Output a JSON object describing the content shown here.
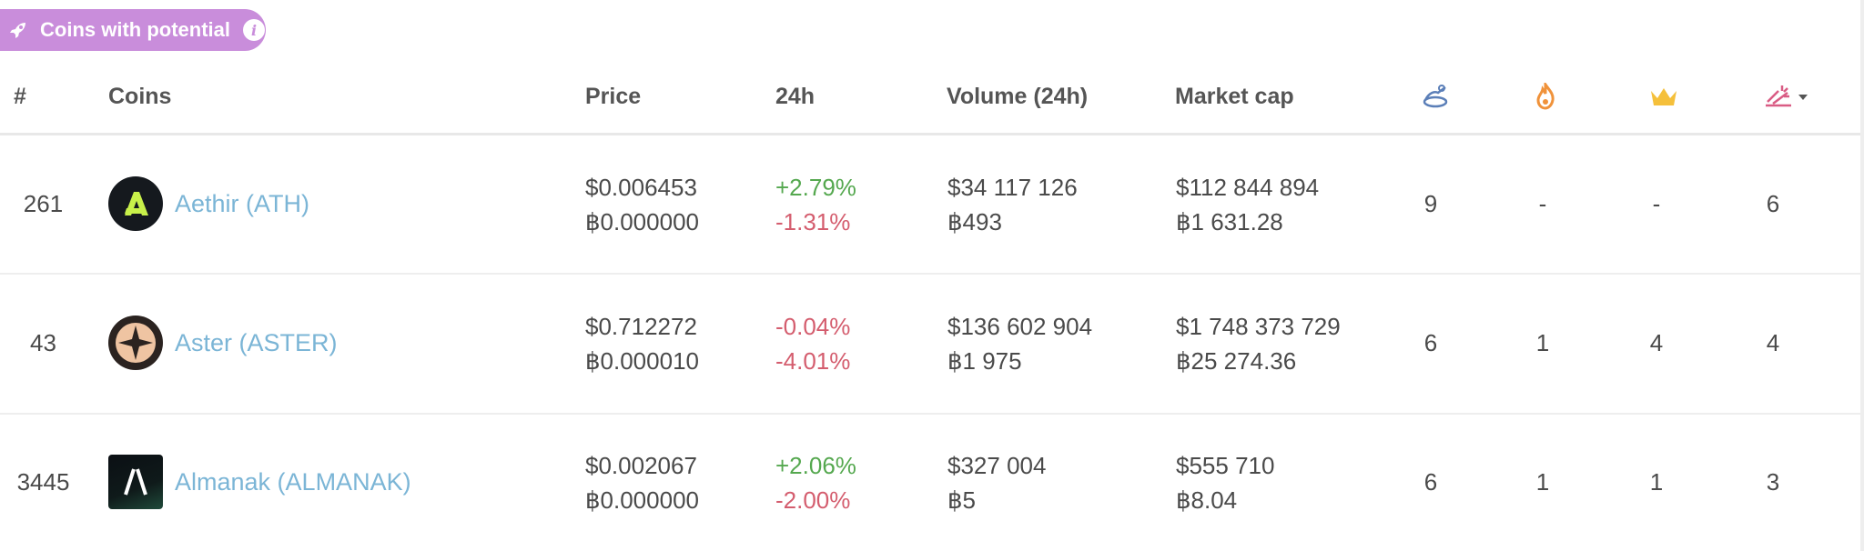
{
  "badge": {
    "label": "Coins with potential",
    "icon": "rocket-icon",
    "info_icon": "info-icon",
    "color": "#c98ddb"
  },
  "columns": {
    "rank": "#",
    "coins": "Coins",
    "price": "Price",
    "change": "24h",
    "volume": "Volume (24h)",
    "market_cap": "Market cap",
    "icon_cols": [
      "hand-coin-icon",
      "fire-icon",
      "crown-icon",
      "sparkle-chart-sort-icon"
    ]
  },
  "rows": [
    {
      "rank": "261",
      "name": "Aethir (ATH)",
      "logo": "aethir-logo",
      "price_usd": "$0.006453",
      "price_btc": "฿0.000000",
      "change_usd": "+2.79%",
      "change_btc": "-1.31%",
      "volume_usd": "$34 117 126",
      "volume_btc": "฿493",
      "cap_usd": "$112 844 894",
      "cap_btc": "฿1 631.28",
      "c1": "9",
      "c2": "-",
      "c3": "-",
      "c4": "6"
    },
    {
      "rank": "43",
      "name": "Aster (ASTER)",
      "logo": "aster-logo",
      "price_usd": "$0.712272",
      "price_btc": "฿0.000010",
      "change_usd": "-0.04%",
      "change_btc": "-4.01%",
      "volume_usd": "$136 602 904",
      "volume_btc": "฿1 975",
      "cap_usd": "$1 748 373 729",
      "cap_btc": "฿25 274.36",
      "c1": "6",
      "c2": "1",
      "c3": "4",
      "c4": "4"
    },
    {
      "rank": "3445",
      "name": "Almanak (ALMANAK)",
      "logo": "almanak-logo",
      "price_usd": "$0.002067",
      "price_btc": "฿0.000000",
      "change_usd": "+2.06%",
      "change_btc": "-2.00%",
      "volume_usd": "$327 004",
      "volume_btc": "฿5",
      "cap_usd": "$555 710",
      "cap_btc": "฿8.04",
      "c1": "6",
      "c2": "1",
      "c3": "1",
      "c4": "3"
    }
  ]
}
